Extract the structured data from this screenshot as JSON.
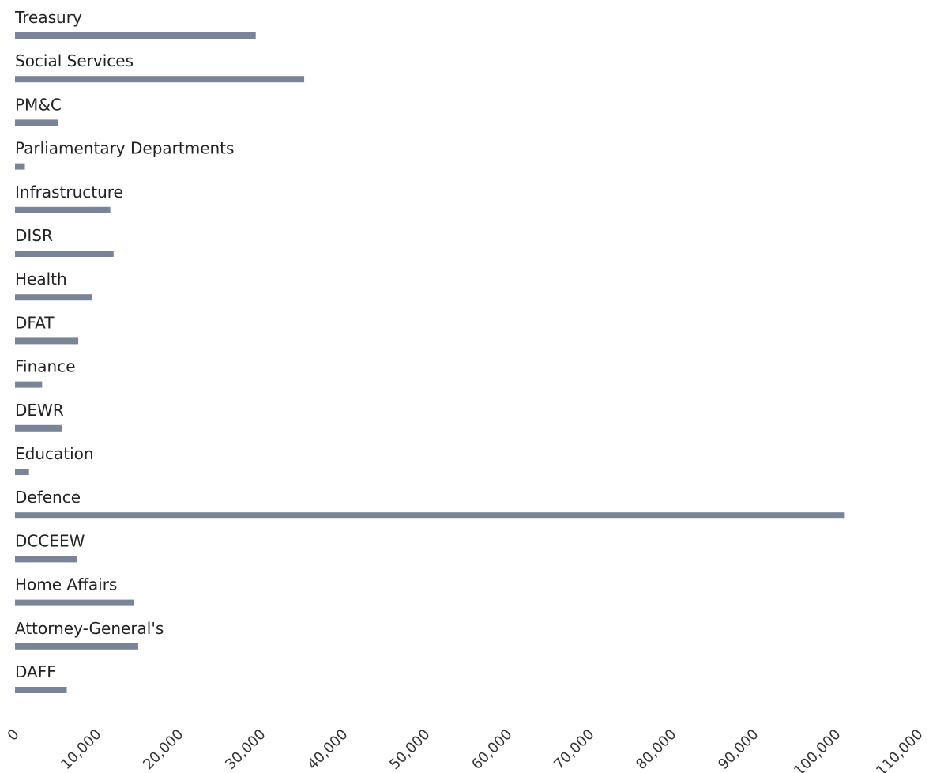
{
  "chart_data": {
    "type": "bar",
    "orientation": "horizontal",
    "categories": [
      "Treasury",
      "Social Services",
      "PM&C",
      "Parliamentary Departments",
      "Infrastructure",
      "DISR",
      "Health",
      "DFAT",
      "Finance",
      "DEWR",
      "Education",
      "Defence",
      "DCCEEW",
      "Home Affairs",
      "Attorney-General's",
      "DAFF"
    ],
    "values": [
      29300,
      35200,
      5200,
      1200,
      11600,
      12000,
      9400,
      7700,
      3300,
      5700,
      1700,
      101000,
      7500,
      14500,
      15000,
      6300
    ],
    "xlim": [
      0,
      110000
    ],
    "x_ticks": [
      "0",
      "10,000",
      "20,000",
      "30,000",
      "40,000",
      "50,000",
      "60,000",
      "70,000",
      "80,000",
      "90,000",
      "100,000",
      "110,000"
    ],
    "x_tick_values": [
      0,
      10000,
      20000,
      30000,
      40000,
      50000,
      60000,
      70000,
      80000,
      90000,
      100000,
      110000
    ],
    "title": "",
    "xlabel": "",
    "ylabel": "",
    "grid": false,
    "legend": "none",
    "bar_color": "#7a8497"
  }
}
